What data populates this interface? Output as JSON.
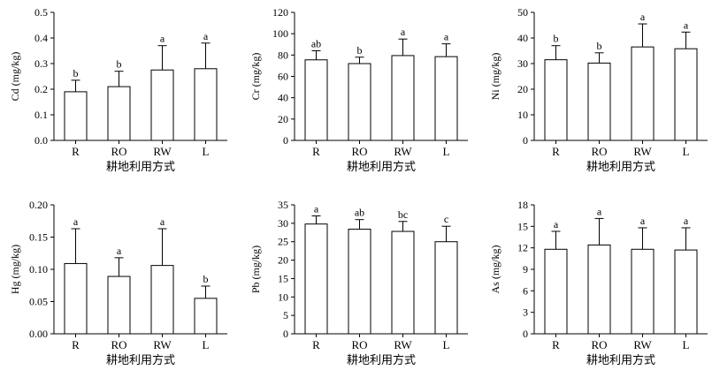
{
  "chart_data": [
    {
      "type": "bar",
      "ylabel": "Cd (mg/kg)",
      "xlabel": "耕地利用方式",
      "categories": [
        "R",
        "RO",
        "RW",
        "L"
      ],
      "values": [
        0.19,
        0.21,
        0.275,
        0.28
      ],
      "errors": [
        0.045,
        0.06,
        0.095,
        0.1
      ],
      "letters": [
        "b",
        "b",
        "a",
        "a"
      ],
      "ylim": [
        0,
        0.5
      ],
      "yticks": [
        "0.0",
        "0.1",
        "0.2",
        "0.3",
        "0.4",
        "0.5"
      ]
    },
    {
      "type": "bar",
      "ylabel": "Cr (mg/kg)",
      "xlabel": "耕地利用方式",
      "categories": [
        "R",
        "RO",
        "RW",
        "L"
      ],
      "values": [
        75.5,
        72,
        79.5,
        78.5
      ],
      "errors": [
        8.5,
        6,
        15.5,
        12
      ],
      "letters": [
        "ab",
        "b",
        "a",
        "a"
      ],
      "ylim": [
        0,
        120
      ],
      "yticks": [
        "0",
        "20",
        "40",
        "60",
        "80",
        "100",
        "120"
      ]
    },
    {
      "type": "bar",
      "ylabel": "Ni (mg/kg)",
      "xlabel": "耕地利用方式",
      "categories": [
        "R",
        "RO",
        "RW",
        "L"
      ],
      "values": [
        31.5,
        30.2,
        36.5,
        35.8
      ],
      "errors": [
        5.5,
        4,
        9,
        6.5
      ],
      "letters": [
        "b",
        "b",
        "a",
        "a"
      ],
      "ylim": [
        0,
        50
      ],
      "yticks": [
        "0",
        "10",
        "20",
        "30",
        "40",
        "50"
      ]
    },
    {
      "type": "bar",
      "ylabel": "Hg (mg/kg)",
      "xlabel": "耕地利用方式",
      "categories": [
        "R",
        "RO",
        "RW",
        "L"
      ],
      "values": [
        0.109,
        0.089,
        0.106,
        0.055
      ],
      "errors": [
        0.054,
        0.029,
        0.057,
        0.019
      ],
      "letters": [
        "a",
        "a",
        "a",
        "b"
      ],
      "ylim": [
        0,
        0.2
      ],
      "yticks": [
        "0.00",
        "0.05",
        "0.10",
        "0.15",
        "0.20"
      ]
    },
    {
      "type": "bar",
      "ylabel": "Pb (mg/kg)",
      "xlabel": "耕地利用方式",
      "categories": [
        "R",
        "RO",
        "RW",
        "L"
      ],
      "values": [
        29.8,
        28.4,
        27.8,
        25
      ],
      "errors": [
        2.2,
        2.6,
        2.7,
        4.2
      ],
      "letters": [
        "a",
        "ab",
        "bc",
        "c"
      ],
      "ylim": [
        0,
        35
      ],
      "yticks": [
        "0",
        "5",
        "10",
        "15",
        "20",
        "25",
        "30",
        "35"
      ]
    },
    {
      "type": "bar",
      "ylabel": "As (mg/kg)",
      "xlabel": "耕地利用方式",
      "categories": [
        "R",
        "RO",
        "RW",
        "L"
      ],
      "values": [
        11.8,
        12.4,
        11.8,
        11.7
      ],
      "errors": [
        2.5,
        3.7,
        3,
        3.1
      ],
      "letters": [
        "a",
        "a",
        "a",
        "a"
      ],
      "ylim": [
        0,
        18
      ],
      "yticks": [
        "0",
        "3",
        "6",
        "9",
        "12",
        "15",
        "18"
      ]
    }
  ]
}
